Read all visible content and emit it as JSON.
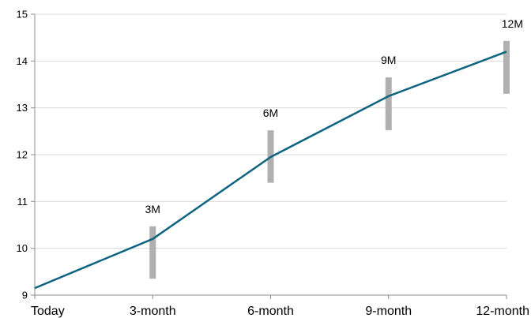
{
  "chart_data": {
    "type": "line",
    "title": "",
    "xlabel": "",
    "ylabel": "",
    "categories": [
      "Today",
      "3-month",
      "6-month",
      "9-month",
      "12-month"
    ],
    "ylim": [
      9,
      15
    ],
    "yticks": [
      9,
      10,
      11,
      12,
      13,
      14,
      15
    ],
    "grid": true,
    "series": [
      {
        "values": [
          9.15,
          10.2,
          11.95,
          13.25,
          14.2
        ]
      }
    ],
    "ranges": [
      {
        "category": "3-month",
        "low": 9.35,
        "high": 10.47,
        "label": "3M"
      },
      {
        "category": "6-month",
        "low": 11.4,
        "high": 12.52,
        "label": "6M"
      },
      {
        "category": "9-month",
        "low": 12.52,
        "high": 13.65,
        "label": "9M"
      },
      {
        "category": "12-month",
        "low": 13.3,
        "high": 14.43,
        "label": "12M"
      }
    ],
    "colors": {
      "line": "#0e6480",
      "range_bar": "#b0b0b0",
      "grid": "#d9d9d9",
      "axis": "#8c8c8c"
    }
  }
}
